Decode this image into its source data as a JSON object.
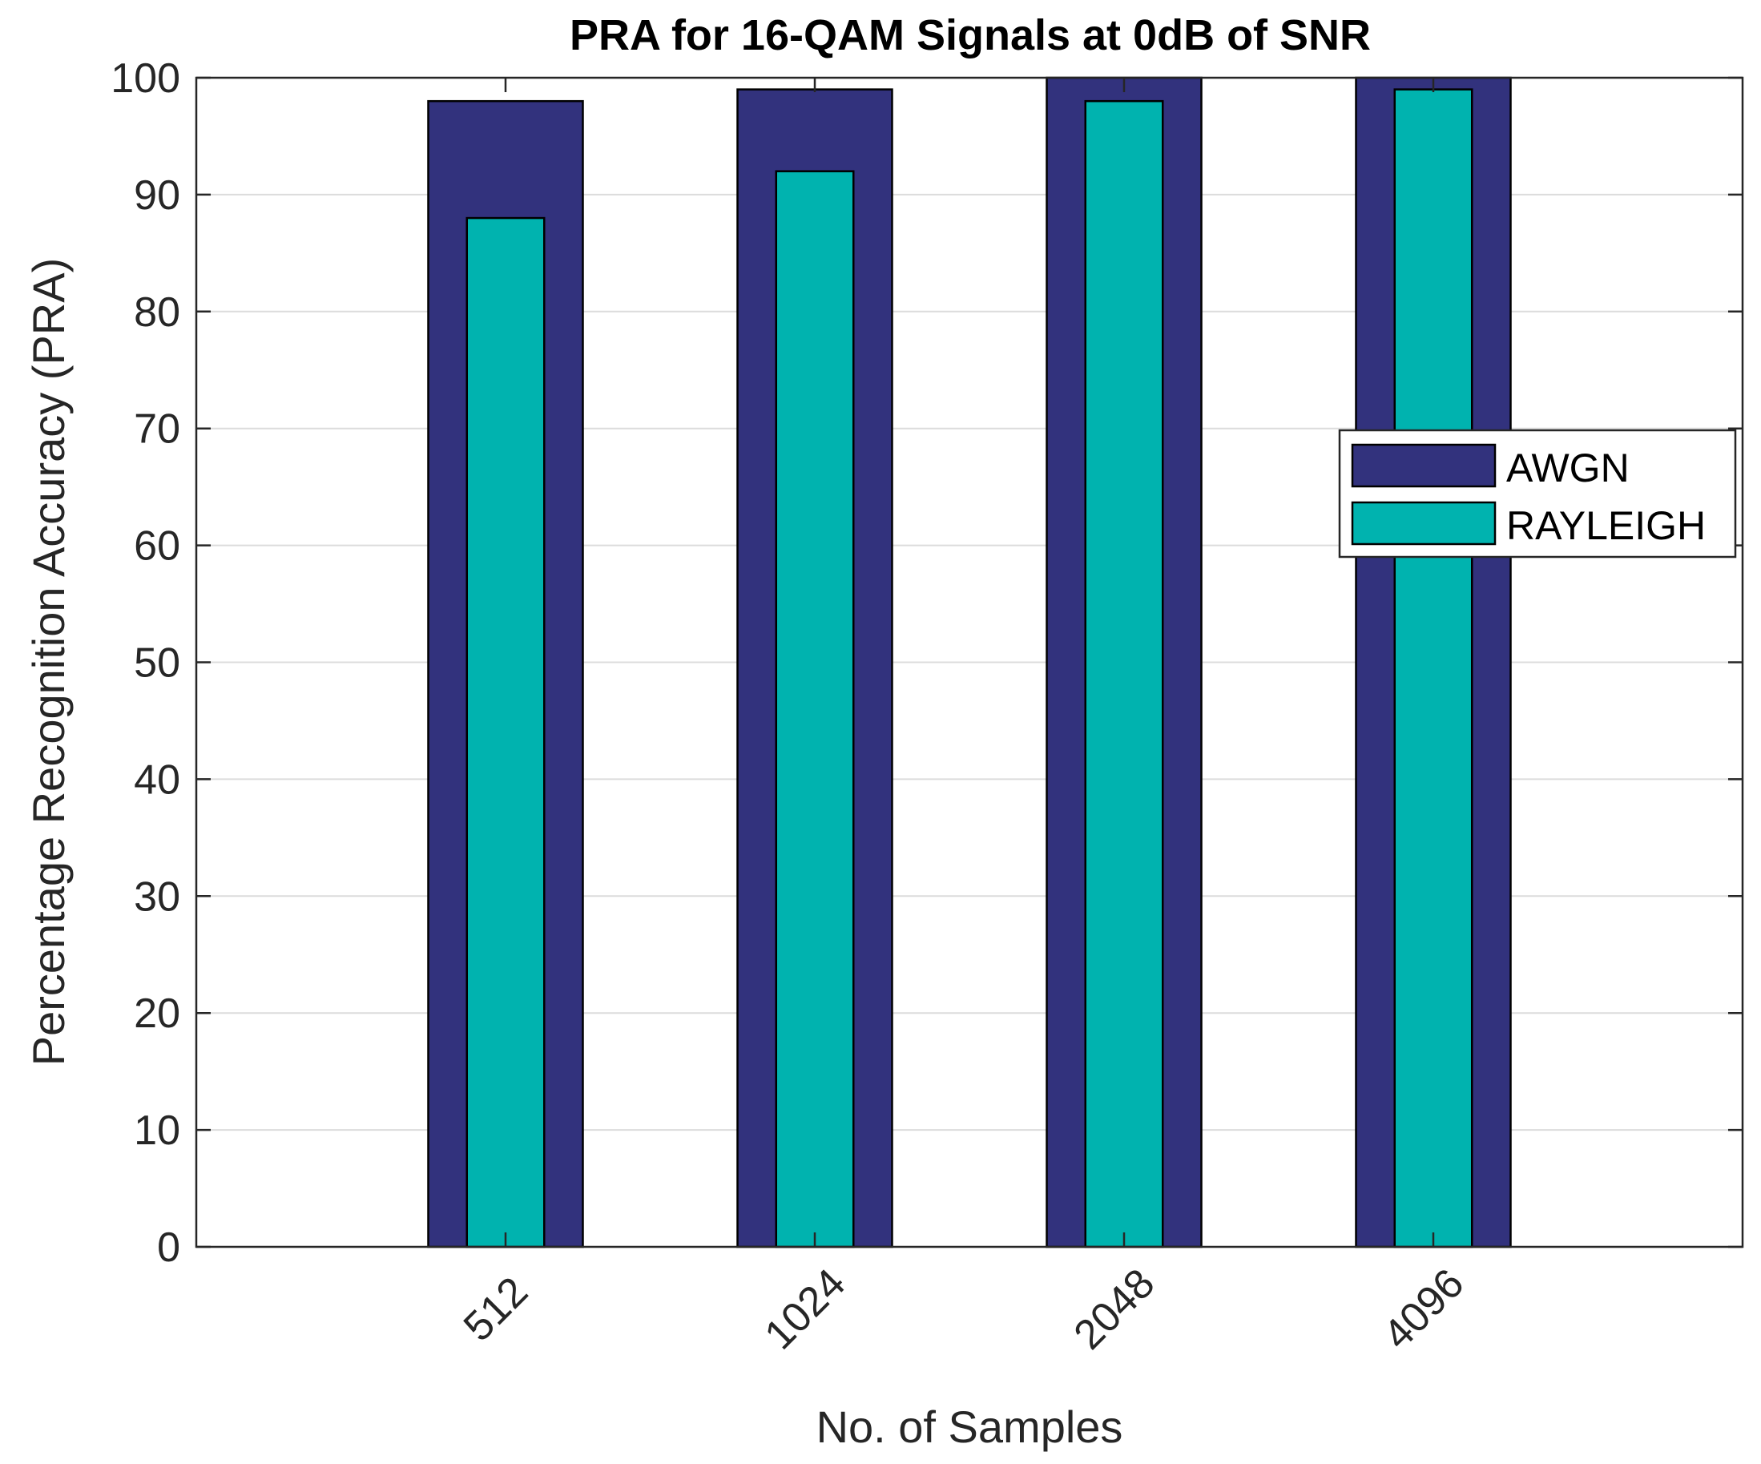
{
  "chart_data": {
    "type": "bar",
    "title": "PRA for 16-QAM Signals at 0dB of SNR",
    "xlabel": "No. of Samples",
    "ylabel": "Percentage Recognition Accuracy (PRA)",
    "categories": [
      "512",
      "1024",
      "2048",
      "4096"
    ],
    "ylim": [
      0,
      100
    ],
    "yticks": [
      "0",
      "10",
      "20",
      "30",
      "40",
      "50",
      "60",
      "70",
      "80",
      "90",
      "100"
    ],
    "grid": true,
    "legend_position": "right",
    "series": [
      {
        "name": "AWGN",
        "values": [
          98,
          99,
          100,
          100
        ],
        "color": "#32327d"
      },
      {
        "name": "RAYLEIGH",
        "values": [
          88,
          92,
          98,
          99
        ],
        "color": "#00b3af"
      }
    ]
  }
}
